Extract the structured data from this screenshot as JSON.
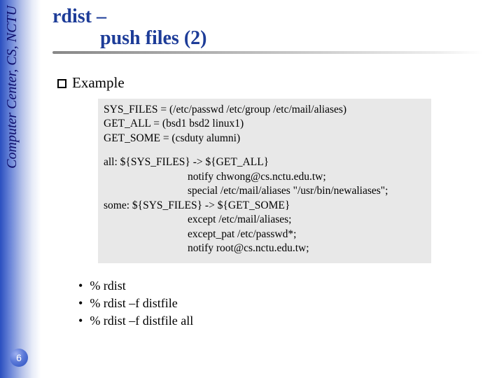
{
  "sidebar": {
    "label": "Computer Center, CS, NCTU"
  },
  "title": {
    "line1": "rdist –",
    "line2": "push files (2)"
  },
  "example": {
    "heading": "Example"
  },
  "codebox": {
    "l1": "SYS_FILES = (/etc/passwd /etc/group /etc/mail/aliases)",
    "l2": "GET_ALL = (bsd1 bsd2 linux1)",
    "l3": "GET_SOME = (csduty alumni)",
    "l4": "all: ${SYS_FILES} -> ${GET_ALL}",
    "l5": "notify chwong@cs.nctu.edu.tw;",
    "l6": "special /etc/mail/aliases \"/usr/bin/newaliases\";",
    "l7": "some: ${SYS_FILES} -> ${GET_SOME}",
    "l8": "except /etc/mail/aliases;",
    "l9": "except_pat /etc/passwd*;",
    "l10": "notify root@cs.nctu.edu.tw;"
  },
  "commands": {
    "c1": "% rdist",
    "c2": "% rdist –f distfile",
    "c3": "% rdist –f distfile all"
  },
  "page": {
    "number": "6"
  },
  "colors": {
    "title_color": "#1d3c98",
    "sidebar_text": "#0d0d6b",
    "codebox_bg": "#e8e8e8",
    "page_bg": "#ffffff"
  }
}
